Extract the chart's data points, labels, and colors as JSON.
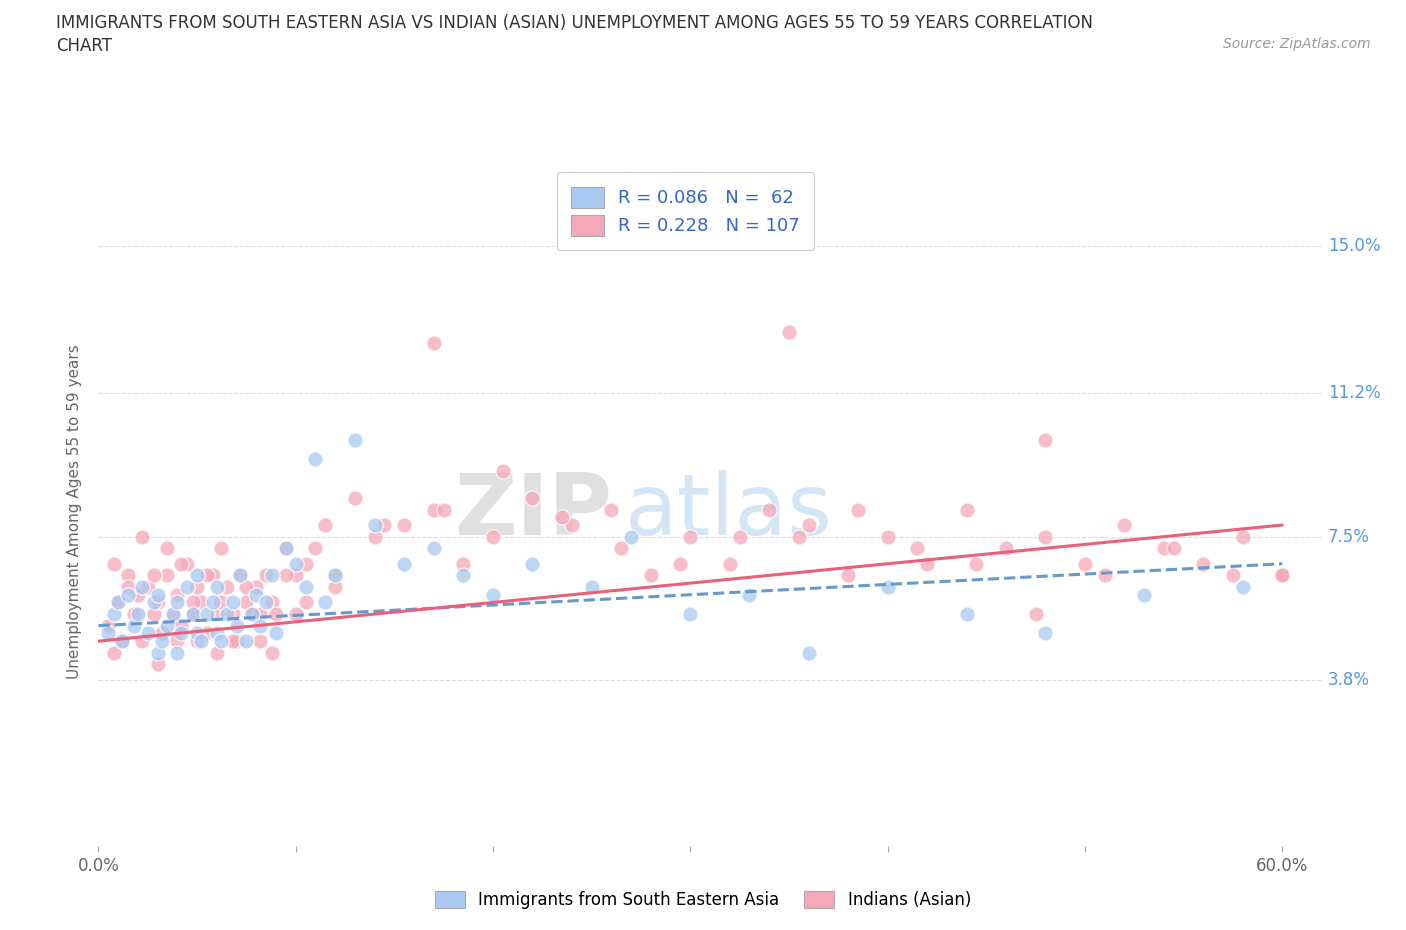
{
  "title_line1": "IMMIGRANTS FROM SOUTH EASTERN ASIA VS INDIAN (ASIAN) UNEMPLOYMENT AMONG AGES 55 TO 59 YEARS CORRELATION",
  "title_line2": "CHART",
  "source_text": "Source: ZipAtlas.com",
  "ylabel": "Unemployment Among Ages 55 to 59 years",
  "xlim": [
    0.0,
    0.62
  ],
  "ylim": [
    -0.005,
    0.168
  ],
  "xticks": [
    0.0,
    0.1,
    0.2,
    0.3,
    0.4,
    0.5,
    0.6
  ],
  "xticklabels": [
    "0.0%",
    "",
    "",
    "",
    "",
    "",
    "60.0%"
  ],
  "ytick_positions": [
    0.0,
    0.038,
    0.075,
    0.112,
    0.15
  ],
  "yticklabels": [
    "",
    "3.8%",
    "7.5%",
    "11.2%",
    "15.0%"
  ],
  "legend_r1": "R = 0.086",
  "legend_n1": "N =  62",
  "legend_r2": "R = 0.228",
  "legend_n2": "N = 107",
  "color_blue": "#A8C8F0",
  "color_pink": "#F5A8B8",
  "trendline_blue_color": "#6699CC",
  "trendline_pink_color": "#E8607A",
  "watermark_zip": "ZIP",
  "watermark_atlas": "atlas",
  "background_color": "#FFFFFF",
  "grid_color": "#DDDDDD",
  "ytick_color": "#5599DD",
  "blue_x": [
    0.005,
    0.008,
    0.01,
    0.012,
    0.015,
    0.018,
    0.02,
    0.022,
    0.025,
    0.028,
    0.03,
    0.03,
    0.032,
    0.035,
    0.038,
    0.04,
    0.04,
    0.042,
    0.045,
    0.048,
    0.05,
    0.05,
    0.052,
    0.055,
    0.058,
    0.06,
    0.06,
    0.062,
    0.065,
    0.068,
    0.07,
    0.072,
    0.075,
    0.078,
    0.08,
    0.082,
    0.085,
    0.088,
    0.09,
    0.095,
    0.1,
    0.105,
    0.11,
    0.115,
    0.12,
    0.13,
    0.14,
    0.155,
    0.17,
    0.185,
    0.2,
    0.22,
    0.25,
    0.27,
    0.3,
    0.33,
    0.36,
    0.4,
    0.44,
    0.48,
    0.53,
    0.58
  ],
  "blue_y": [
    0.05,
    0.055,
    0.058,
    0.048,
    0.06,
    0.052,
    0.055,
    0.062,
    0.05,
    0.058,
    0.045,
    0.06,
    0.048,
    0.052,
    0.055,
    0.058,
    0.045,
    0.05,
    0.062,
    0.055,
    0.05,
    0.065,
    0.048,
    0.055,
    0.058,
    0.05,
    0.062,
    0.048,
    0.055,
    0.058,
    0.052,
    0.065,
    0.048,
    0.055,
    0.06,
    0.052,
    0.058,
    0.065,
    0.05,
    0.072,
    0.068,
    0.062,
    0.095,
    0.058,
    0.065,
    0.1,
    0.078,
    0.068,
    0.072,
    0.065,
    0.06,
    0.068,
    0.062,
    0.075,
    0.055,
    0.06,
    0.045,
    0.062,
    0.055,
    0.05,
    0.06,
    0.062
  ],
  "pink_x": [
    0.005,
    0.008,
    0.01,
    0.012,
    0.015,
    0.018,
    0.02,
    0.022,
    0.025,
    0.028,
    0.03,
    0.03,
    0.032,
    0.035,
    0.038,
    0.04,
    0.04,
    0.042,
    0.045,
    0.048,
    0.05,
    0.05,
    0.052,
    0.055,
    0.058,
    0.06,
    0.06,
    0.062,
    0.065,
    0.068,
    0.07,
    0.072,
    0.075,
    0.078,
    0.08,
    0.082,
    0.085,
    0.088,
    0.09,
    0.095,
    0.1,
    0.105,
    0.11,
    0.115,
    0.12,
    0.13,
    0.14,
    0.155,
    0.17,
    0.185,
    0.2,
    0.22,
    0.24,
    0.26,
    0.28,
    0.3,
    0.32,
    0.34,
    0.36,
    0.38,
    0.4,
    0.42,
    0.44,
    0.46,
    0.48,
    0.5,
    0.52,
    0.54,
    0.56,
    0.58,
    0.6,
    0.008,
    0.015,
    0.022,
    0.028,
    0.035,
    0.042,
    0.048,
    0.055,
    0.062,
    0.068,
    0.075,
    0.082,
    0.088,
    0.095,
    0.1,
    0.105,
    0.12,
    0.145,
    0.175,
    0.205,
    0.235,
    0.265,
    0.295,
    0.325,
    0.355,
    0.385,
    0.415,
    0.445,
    0.475,
    0.51,
    0.545,
    0.575,
    0.6,
    0.17,
    0.35,
    0.48
  ],
  "pink_y": [
    0.052,
    0.045,
    0.058,
    0.048,
    0.065,
    0.055,
    0.06,
    0.048,
    0.062,
    0.055,
    0.042,
    0.058,
    0.05,
    0.065,
    0.055,
    0.048,
    0.06,
    0.052,
    0.068,
    0.055,
    0.048,
    0.062,
    0.058,
    0.05,
    0.065,
    0.055,
    0.045,
    0.058,
    0.062,
    0.055,
    0.048,
    0.065,
    0.058,
    0.055,
    0.062,
    0.048,
    0.065,
    0.058,
    0.055,
    0.072,
    0.065,
    0.068,
    0.072,
    0.078,
    0.065,
    0.085,
    0.075,
    0.078,
    0.082,
    0.068,
    0.075,
    0.085,
    0.078,
    0.082,
    0.065,
    0.075,
    0.068,
    0.082,
    0.078,
    0.065,
    0.075,
    0.068,
    0.082,
    0.072,
    0.075,
    0.068,
    0.078,
    0.072,
    0.068,
    0.075,
    0.065,
    0.068,
    0.062,
    0.075,
    0.065,
    0.072,
    0.068,
    0.058,
    0.065,
    0.072,
    0.048,
    0.062,
    0.055,
    0.045,
    0.065,
    0.055,
    0.058,
    0.062,
    0.078,
    0.082,
    0.092,
    0.08,
    0.072,
    0.068,
    0.075,
    0.075,
    0.082,
    0.072,
    0.068,
    0.055,
    0.065,
    0.072,
    0.065,
    0.065,
    0.125,
    0.128,
    0.1
  ],
  "blue_trend_x": [
    0.0,
    0.6
  ],
  "blue_trend_y": [
    0.052,
    0.068
  ],
  "pink_trend_x": [
    0.0,
    0.6
  ],
  "pink_trend_y": [
    0.048,
    0.078
  ]
}
